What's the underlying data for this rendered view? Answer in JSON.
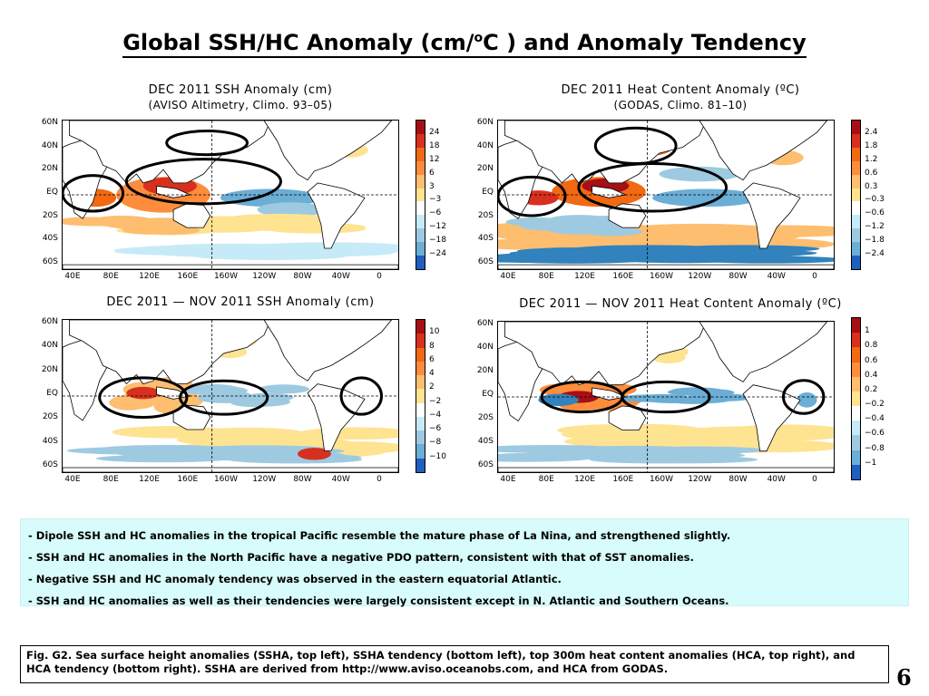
{
  "slide_title": "Global SSH/HC Anomaly (cm/",
  "slide_title_super": "o",
  "slide_title_end": "C ) and Anomaly Tendency",
  "panels": [
    {
      "id": "ssh",
      "title": "DEC 2011 SSH Anomaly (cm)",
      "subtitle": "(AVISO Altimetry, Climo. 93–05)",
      "lat_labels": [
        "60N",
        "40N",
        "20N",
        "EQ",
        "20S",
        "40S",
        "60S"
      ],
      "lon_labels": [
        "40E",
        "80E",
        "120E",
        "160E",
        "160W",
        "120W",
        "80W",
        "40W",
        "0"
      ],
      "colorbar": [
        "24",
        "18",
        "12",
        "6",
        "3",
        "−3",
        "−6",
        "−12",
        "−18",
        "−24"
      ]
    },
    {
      "id": "hc",
      "title": "DEC 2011 Heat Content Anomaly (ºC)",
      "subtitle": "(GODAS,  Climo. 81–10)",
      "lat_labels": [
        "60N",
        "40N",
        "20N",
        "EQ",
        "20S",
        "40S",
        "60S"
      ],
      "lon_labels": [
        "40E",
        "80E",
        "120E",
        "160E",
        "160W",
        "120W",
        "80W",
        "40W",
        "0"
      ],
      "colorbar": [
        "2.4",
        "1.8",
        "1.2",
        "0.6",
        "0.3",
        "−0.3",
        "−0.6",
        "−1.2",
        "−1.8",
        "−2.4"
      ]
    },
    {
      "id": "ssh-tend",
      "title": "DEC 2011 — NOV 2011 SSH Anomaly (cm)",
      "subtitle": "",
      "lat_labels": [
        "60N",
        "40N",
        "20N",
        "EQ",
        "20S",
        "40S",
        "60S"
      ],
      "lon_labels": [
        "40E",
        "80E",
        "120E",
        "160E",
        "160W",
        "120W",
        "80W",
        "40W",
        "0"
      ],
      "colorbar": [
        "10",
        "8",
        "6",
        "4",
        "2",
        "−2",
        "−4",
        "−6",
        "−8",
        "−10"
      ]
    },
    {
      "id": "hc-tend",
      "title": "DEC 2011 — NOV 2011 Heat Content Anomaly (ºC)",
      "subtitle": "",
      "lat_labels": [
        "60N",
        "40N",
        "20N",
        "EQ",
        "20S",
        "40S",
        "60S"
      ],
      "lon_labels": [
        "40E",
        "80E",
        "120E",
        "160E",
        "160W",
        "120W",
        "80W",
        "40W",
        "0"
      ],
      "colorbar": [
        "1",
        "0.8",
        "0.6",
        "0.4",
        "0.2",
        "−0.2",
        "−0.4",
        "−0.6",
        "−0.8",
        "−1"
      ]
    }
  ],
  "colors": {
    "warm": [
      "#a50f15",
      "#d7301f",
      "#f16913",
      "#fd8d3c",
      "#fdbe6f",
      "#fee391"
    ],
    "cool": [
      "#c6eaf7",
      "#9ecae1",
      "#6baed6",
      "#3182bd",
      "#1f5fbf"
    ],
    "land": "#ffffff",
    "bullet_bg": "#d8fbfb"
  },
  "bullets": [
    "-  Dipole SSH and HC anomalies in the tropical Pacific resemble the mature phase of  La Nina, and strengthened slightly.",
    "-  SSH and HC anomalies in the North Pacific have a negative PDO pattern, consistent with that of SST anomalies.",
    "-  Negative SSH and HC anomaly tendency was observed in the eastern equatorial Atlantic.",
    "-  SSH and HC  anomalies  as well as their tendencies were largely consistent except in N. Atlantic and Southern Oceans."
  ],
  "caption": "Fig. G2. Sea surface height anomalies (SSHA, top left), SSHA tendency (bottom left), top 300m heat content anomalies (HCA, top right), and HCA tendency (bottom right).  SSHA are derived from http://www.aviso.oceanobs.com, and HCA from GODAS.",
  "page_number": "6"
}
